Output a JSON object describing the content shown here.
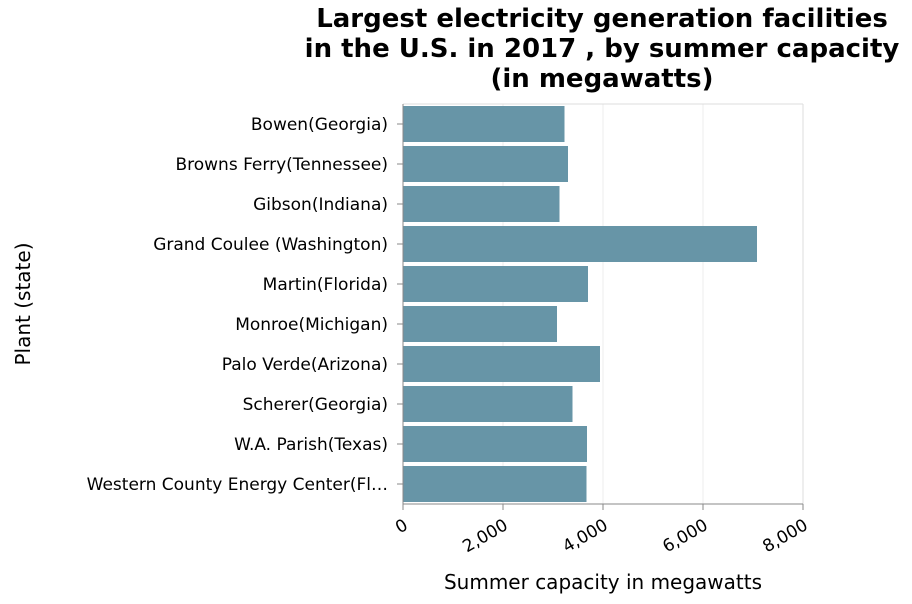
{
  "chart_data": {
    "type": "bar",
    "orientation": "horizontal",
    "title_lines": [
      "Largest electricity generation facilities",
      "in the U.S. in 2017 , by summer capacity",
      "(in megawatts)"
    ],
    "xlabel": "Summer capacity in megawatts",
    "ylabel": "Plant (state)",
    "categories": [
      "Bowen(Georgia)",
      "Browns Ferry(Tennessee)",
      "Gibson(Indiana)",
      "Grand Coulee (Washington)",
      "Martin(Florida)",
      "Monroe(Michigan)",
      "Palo Verde(Arizona)",
      "Scherer(Georgia)",
      "W.A. Parish(Texas)",
      "Western County Energy Center(Fl…"
    ],
    "values": [
      3230,
      3300,
      3130,
      7080,
      3700,
      3080,
      3940,
      3390,
      3680,
      3670
    ],
    "xlim": [
      0,
      8000
    ],
    "xticks": [
      0,
      2000,
      4000,
      6000,
      8000
    ],
    "xtick_labels": [
      "0",
      "2,000",
      "4,000",
      "6,000",
      "8,000"
    ],
    "grid": true,
    "bar_color": "#6795a7"
  }
}
